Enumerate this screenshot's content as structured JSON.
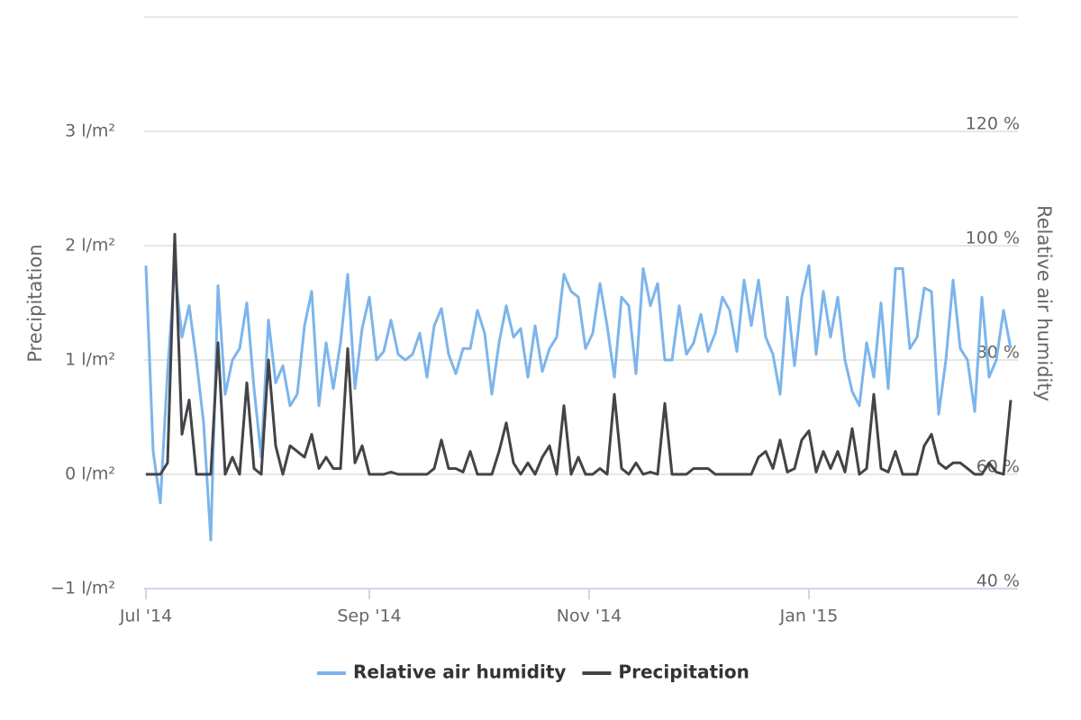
{
  "chart_data": {
    "type": "line",
    "y_label": "Precipitation",
    "y2_label": "Relative air humidity",
    "legend": "bottom",
    "grid": true,
    "x": [
      0,
      2,
      4,
      6,
      8,
      10,
      12,
      14,
      16,
      18,
      20,
      22,
      24,
      26,
      28,
      30,
      32,
      34,
      36,
      38,
      40,
      42,
      44,
      46,
      48,
      50,
      52,
      54,
      56,
      58,
      60,
      62,
      64,
      66,
      68,
      70,
      72,
      74,
      76,
      78,
      80,
      82,
      84,
      86,
      88,
      90,
      92,
      94,
      96,
      98,
      100,
      102,
      104,
      106,
      108,
      110,
      112,
      114,
      116,
      118,
      120,
      122,
      124,
      126,
      128,
      130,
      132,
      134,
      136,
      138,
      140,
      142,
      144,
      146,
      148,
      150,
      152,
      154,
      156,
      158,
      160,
      162,
      164,
      166,
      168,
      170,
      172,
      174,
      176,
      178,
      180,
      182,
      184,
      186,
      188,
      190,
      192,
      194,
      196,
      198,
      200,
      202,
      204,
      206,
      208,
      210,
      212,
      214,
      216,
      218,
      220,
      222,
      224,
      226,
      228,
      230,
      232,
      234,
      236,
      238,
      240
    ],
    "xlim": [
      0,
      242
    ],
    "xticks": [
      {
        "value": 0,
        "label": "Jul '14"
      },
      {
        "value": 62,
        "label": "Sep '14"
      },
      {
        "value": 123,
        "label": "Nov '14"
      },
      {
        "value": 184,
        "label": "Jan '15"
      }
    ],
    "ylim": [
      -1,
      4
    ],
    "yticks": [
      {
        "value": -1,
        "label": "−1 l/m²"
      },
      {
        "value": 0,
        "label": "0 l/m²"
      },
      {
        "value": 1,
        "label": "1 l/m²"
      },
      {
        "value": 2,
        "label": "2 l/m²"
      },
      {
        "value": 3,
        "label": "3 l/m²"
      }
    ],
    "y2lim": [
      40,
      140
    ],
    "y2ticks": [
      {
        "value": 40,
        "label": "40 %"
      },
      {
        "value": 60,
        "label": "60 %"
      },
      {
        "value": 80,
        "label": "80 %"
      },
      {
        "value": 100,
        "label": "100 %"
      },
      {
        "value": 120,
        "label": "120 %"
      }
    ],
    "series": [
      {
        "name": "Relative air humidity",
        "color": "#7cb5ec",
        "axis": "y2",
        "values": [
          96.5,
          64,
          55,
          78,
          96,
          84,
          89.5,
          80,
          69,
          48.5,
          93,
          74,
          80,
          82,
          90,
          75,
          63,
          87,
          76,
          79,
          72,
          74,
          86,
          92,
          72,
          83,
          75,
          83,
          95,
          75,
          85.5,
          91,
          80,
          81.5,
          87,
          81,
          80,
          81,
          84.7,
          77,
          86,
          89,
          81,
          77.6,
          82,
          82,
          88.7,
          84.7,
          74,
          83,
          89.5,
          84,
          85.5,
          77,
          86,
          78,
          82,
          84,
          95,
          92,
          91,
          82,
          84.7,
          93.4,
          86,
          77,
          91,
          89.5,
          77.6,
          96,
          89.5,
          93.4,
          80,
          80,
          89.5,
          81,
          83,
          88,
          81.5,
          84.7,
          91,
          88.7,
          81.5,
          94,
          86,
          94,
          84,
          81,
          74,
          91,
          79,
          91,
          96.5,
          81,
          92,
          84,
          91,
          80,
          74.5,
          72,
          83,
          77,
          90,
          75,
          96,
          96,
          82,
          84,
          92.6,
          92,
          70.5,
          80,
          94,
          82,
          80,
          71,
          91,
          77,
          80,
          88.7,
          82
        ]
      },
      {
        "name": "Precipitation",
        "color": "#434348",
        "axis": "y",
        "values": [
          0,
          0,
          0,
          0.1,
          2.1,
          0.35,
          0.65,
          0,
          0,
          0,
          1.15,
          0,
          0.15,
          0,
          0.8,
          0.05,
          0,
          1.0,
          0.25,
          0,
          0.25,
          0.2,
          0.15,
          0.35,
          0.05,
          0.15,
          0.05,
          0.05,
          1.1,
          0.1,
          0.25,
          0,
          0,
          0,
          0.02,
          0,
          0,
          0,
          0,
          0,
          0.05,
          0.3,
          0.05,
          0.05,
          0.02,
          0.2,
          0,
          0,
          0,
          0.2,
          0.45,
          0.1,
          0,
          0.1,
          0,
          0.15,
          0.25,
          0,
          0.6,
          0,
          0.15,
          0,
          0,
          0.05,
          0,
          0.7,
          0.05,
          0,
          0.1,
          0,
          0.02,
          0,
          0.62,
          0,
          0,
          0,
          0.05,
          0.05,
          0.05,
          0,
          0,
          0,
          0,
          0,
          0,
          0.15,
          0.2,
          0.05,
          0.3,
          0.02,
          0.05,
          0.3,
          0.38,
          0.02,
          0.2,
          0.05,
          0.2,
          0.02,
          0.4,
          0,
          0.05,
          0.7,
          0.05,
          0.02,
          0.2,
          0,
          0,
          0,
          0.25,
          0.35,
          0.1,
          0.05,
          0.1,
          0.1,
          0.05,
          0,
          0,
          0.1,
          0.02,
          0,
          0.65
        ]
      }
    ]
  }
}
